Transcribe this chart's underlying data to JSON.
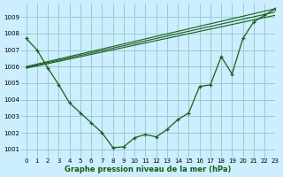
{
  "title": "Graphe pression niveau de la mer (hPa)",
  "bg_color": "#cceeff",
  "grid_color": "#99cccc",
  "line_color": "#1a5c1a",
  "xlim": [
    -0.5,
    23
  ],
  "ylim": [
    1000.5,
    1009.8
  ],
  "yticks": [
    1001,
    1002,
    1003,
    1004,
    1005,
    1006,
    1007,
    1008,
    1009
  ],
  "xticks": [
    0,
    1,
    2,
    3,
    4,
    5,
    6,
    7,
    8,
    9,
    10,
    11,
    12,
    13,
    14,
    15,
    16,
    17,
    18,
    19,
    20,
    21,
    22,
    23
  ],
  "main_curve": {
    "x": [
      0,
      1,
      2,
      3,
      4,
      5,
      6,
      7,
      8,
      9,
      10,
      11,
      12,
      13,
      14,
      15,
      16,
      17,
      18,
      19,
      20,
      21,
      22,
      23
    ],
    "y": [
      1007.7,
      1007.0,
      1005.9,
      1004.9,
      1003.8,
      1003.2,
      1002.6,
      1002.0,
      1001.1,
      1001.15,
      1001.7,
      1001.9,
      1001.75,
      1002.2,
      1002.8,
      1003.2,
      1004.8,
      1004.9,
      1006.6,
      1005.55,
      1007.7,
      1008.7,
      1009.1,
      1009.5
    ]
  },
  "envelope_lines": [
    {
      "x": [
        0,
        23
      ],
      "y": [
        1005.9,
        1009.1
      ]
    },
    {
      "x": [
        0,
        23
      ],
      "y": [
        1005.95,
        1009.3
      ]
    },
    {
      "x": [
        0,
        23
      ],
      "y": [
        1006.0,
        1009.5
      ]
    }
  ]
}
